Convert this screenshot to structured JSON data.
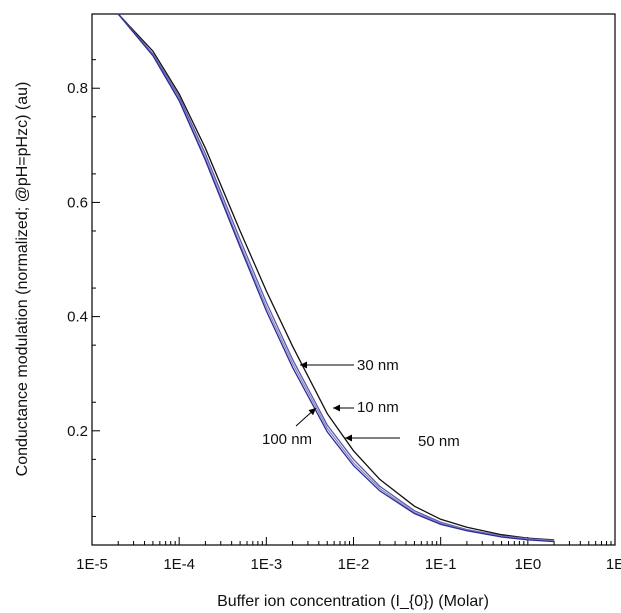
{
  "chart_data": {
    "type": "line",
    "xscale": "log",
    "xlim": [
      "1E-5",
      "1E"
    ],
    "ylim": [
      0.0,
      0.93
    ],
    "xlabel": "Buffer ion concentration (I_{0}) (Molar)",
    "ylabel": "Conductance modulation (normalized; @pH=pHzc) (au)",
    "x_tick_labels": [
      "1E-5",
      "1E-4",
      "1E-3",
      "1E-2",
      "1E-1",
      "1E0",
      "1E"
    ],
    "y_ticks": [
      0.2,
      0.4,
      0.6,
      0.8
    ],
    "y_tick_labels": [
      "0.2",
      "0.4",
      "0.6",
      "0.8"
    ],
    "grid": false,
    "series": [
      {
        "name": "30 nm",
        "color": "#111111",
        "x": [
          2e-05,
          5e-05,
          0.0001,
          0.0002,
          0.0005,
          0.001,
          0.002,
          0.005,
          0.01,
          0.02,
          0.05,
          0.1,
          0.2,
          0.5,
          1,
          2
        ],
        "y": [
          0.93,
          0.865,
          0.79,
          0.695,
          0.55,
          0.445,
          0.348,
          0.23,
          0.165,
          0.115,
          0.068,
          0.045,
          0.031,
          0.018,
          0.012,
          0.009
        ]
      },
      {
        "name": "10 nm",
        "color": "#5a5aa8",
        "x": [
          2e-05,
          5e-05,
          0.0001,
          0.0002,
          0.0005,
          0.001,
          0.002,
          0.005,
          0.01,
          0.02,
          0.05,
          0.1,
          0.2,
          0.5,
          1,
          2
        ],
        "y": [
          0.93,
          0.86,
          0.785,
          0.685,
          0.535,
          0.425,
          0.325,
          0.21,
          0.15,
          0.103,
          0.06,
          0.04,
          0.027,
          0.016,
          0.011,
          0.008
        ]
      },
      {
        "name": "50 nm",
        "color": "#8888c0",
        "x": [
          2e-05,
          5e-05,
          0.0001,
          0.0002,
          0.0005,
          0.001,
          0.002,
          0.005,
          0.01,
          0.02,
          0.05,
          0.1,
          0.2,
          0.5,
          1,
          2
        ],
        "y": [
          0.93,
          0.858,
          0.78,
          0.678,
          0.527,
          0.417,
          0.318,
          0.204,
          0.144,
          0.099,
          0.057,
          0.038,
          0.026,
          0.015,
          0.01,
          0.007
        ]
      },
      {
        "name": "100 nm",
        "color": "#2a2a9a",
        "x": [
          2e-05,
          5e-05,
          0.0001,
          0.0002,
          0.0005,
          0.001,
          0.002,
          0.005,
          0.01,
          0.02,
          0.05,
          0.1,
          0.2,
          0.5,
          1,
          2
        ],
        "y": [
          0.93,
          0.857,
          0.778,
          0.674,
          0.522,
          0.41,
          0.311,
          0.198,
          0.139,
          0.095,
          0.055,
          0.036,
          0.025,
          0.014,
          0.009,
          0.006
        ]
      }
    ],
    "annotations": [
      {
        "text": "30 nm",
        "x": 0.0026,
        "y": 0.33
      },
      {
        "text": "10 nm",
        "x": 0.0063,
        "y": 0.245
      },
      {
        "text": "50 nm",
        "x": 0.0078,
        "y": 0.2
      },
      {
        "text": "100 nm",
        "x": 0.0038,
        "y": 0.255
      }
    ]
  }
}
